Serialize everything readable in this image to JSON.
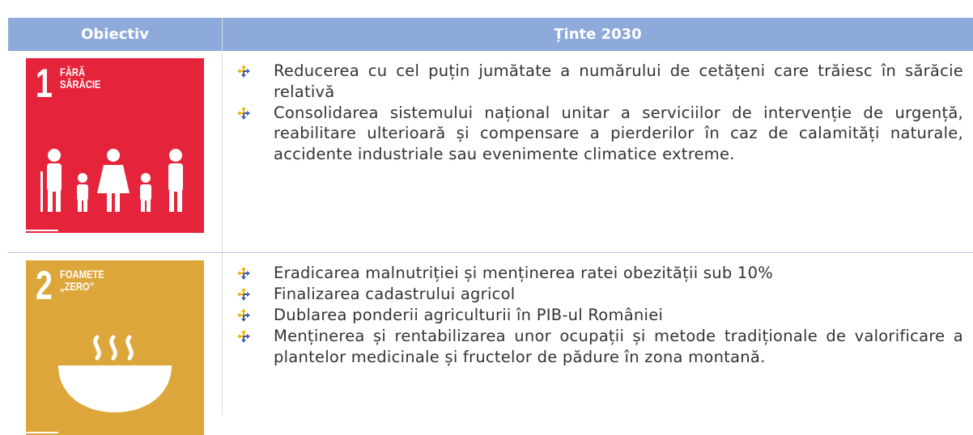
{
  "header": {
    "columns": [
      "Obiectiv",
      "Ținte 2030"
    ]
  },
  "rows": [
    {
      "goal_number": "1",
      "goal_title": [
        "FĂRĂ",
        "SĂRĂCIE"
      ],
      "targets": [
        "Reducerea cu cel puțin jumătate a numărului de cetățeni care trăiesc în sărăcie relativă",
        "Consolidarea sistemului național unitar a serviciilor de intervenție de urgență, reabilitare ulterioară și compensare a pierderilor în caz de calamități naturale, accidente industriale sau evenimente climatice extreme."
      ]
    },
    {
      "goal_number": "2",
      "goal_title": [
        "FOAMETE",
        "„ZERO”"
      ],
      "targets": [
        "Eradicarea malnutriției și menținerea ratei obezității sub 10%",
        "Finalizarea cadastrului agricol",
        "Dublarea ponderii agriculturii în PIB-ul României",
        "Menținerea și rentabilizarea unor ocupații și metode tradiționale de valorificare a plantelor medicinale și fructelor de pădure în zona montană."
      ]
    }
  ]
}
